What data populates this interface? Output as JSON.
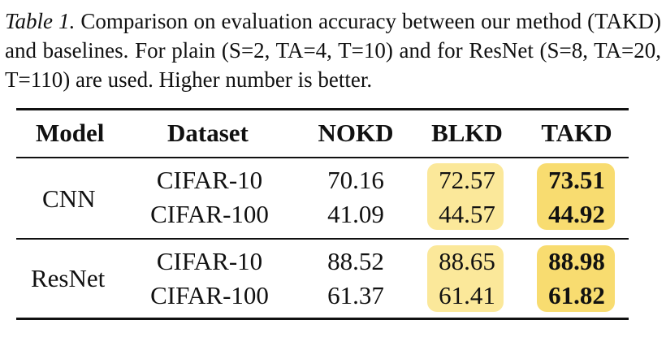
{
  "caption": {
    "label": "Table 1.",
    "text": "Comparison on evaluation accuracy between our method (TAKD) and baselines.  For plain (S=2, TA=4, T=10) and for ResNet (S=8, TA=20, T=110) are used. Higher number is better."
  },
  "table": {
    "headers": [
      "Model",
      "Dataset",
      "NOKD",
      "BLKD",
      "TAKD"
    ],
    "groups": [
      {
        "model": "CNN",
        "rows": [
          {
            "dataset": "CIFAR-10",
            "nokd": "70.16",
            "blkd": "72.57",
            "takd": "73.51"
          },
          {
            "dataset": "CIFAR-100",
            "nokd": "41.09",
            "blkd": "44.57",
            "takd": "44.92"
          }
        ]
      },
      {
        "model": "ResNet",
        "rows": [
          {
            "dataset": "CIFAR-10",
            "nokd": "88.52",
            "blkd": "88.65",
            "takd": "88.98"
          },
          {
            "dataset": "CIFAR-100",
            "nokd": "61.37",
            "blkd": "61.41",
            "takd": "61.82"
          }
        ]
      }
    ],
    "highlight_color_blkd": "#fbe89a",
    "highlight_color_takd": "#f8dc70"
  }
}
